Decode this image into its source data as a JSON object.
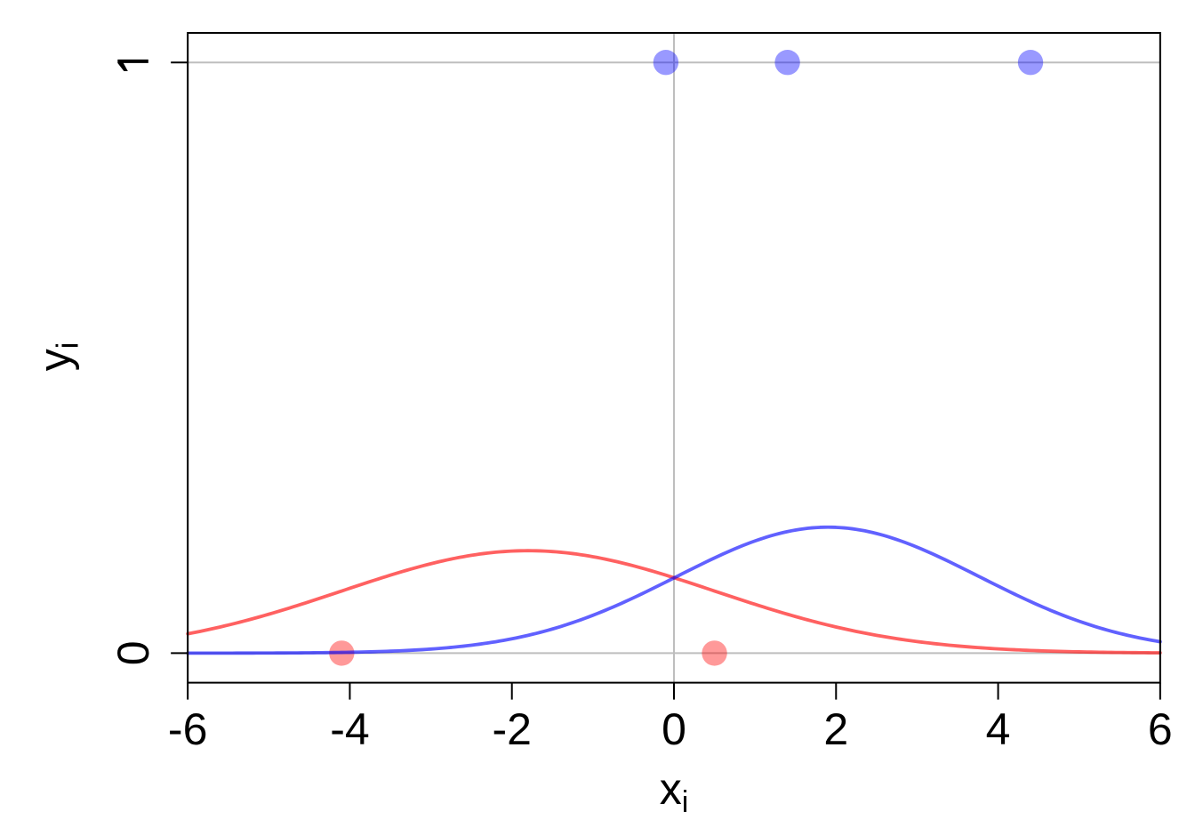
{
  "chart_data": {
    "type": "scatter",
    "title": "",
    "xlabel": {
      "base": "x",
      "sub": "i"
    },
    "ylabel": {
      "base": "y",
      "sub": "i"
    },
    "xlim": [
      -6,
      6
    ],
    "ylim": [
      -0.05,
      1.05
    ],
    "x_ticks": [
      -6,
      -4,
      -2,
      0,
      2,
      4,
      6
    ],
    "x_tick_labels": [
      "-6",
      "-4",
      "-2",
      "0",
      "2",
      "4",
      "6"
    ],
    "y_ticks": [
      0,
      1
    ],
    "y_tick_labels": [
      "0",
      "1"
    ],
    "grid": {
      "horizontal_y": [
        0,
        1
      ],
      "vertical_x": [
        0
      ]
    },
    "legend": "none",
    "series": [
      {
        "name": "observations-y0",
        "type": "points",
        "points_x": [
          -4.1,
          0.5
        ],
        "points_y": [
          0,
          0
        ],
        "color": "rgba(255,0,0,0.4)"
      },
      {
        "name": "observations-y1",
        "type": "points",
        "points_x": [
          -0.1,
          1.4,
          4.4
        ],
        "points_y": [
          1,
          1,
          1
        ],
        "color": "rgba(0,0,255,0.4)"
      },
      {
        "name": "density-y0",
        "type": "gaussian-curve",
        "mean": -1.8,
        "sd": 2.3,
        "peak": 0.1734,
        "color": "rgba(255,0,0,0.62)"
      },
      {
        "name": "density-y1",
        "type": "gaussian-curve",
        "mean": 1.9,
        "sd": 1.8708,
        "peak": 0.2133,
        "color": "rgba(0,0,255,0.62)"
      }
    ],
    "colors": {
      "background": "#ffffff",
      "gridline": "#bebebe",
      "axis": "#000000",
      "point_y0": "rgba(255,0,0,0.4)",
      "point_y1": "rgba(0,0,255,0.4)",
      "curve_y0": "rgba(255,0,0,0.62)",
      "curve_y1": "rgba(0,0,255,0.62)"
    }
  }
}
